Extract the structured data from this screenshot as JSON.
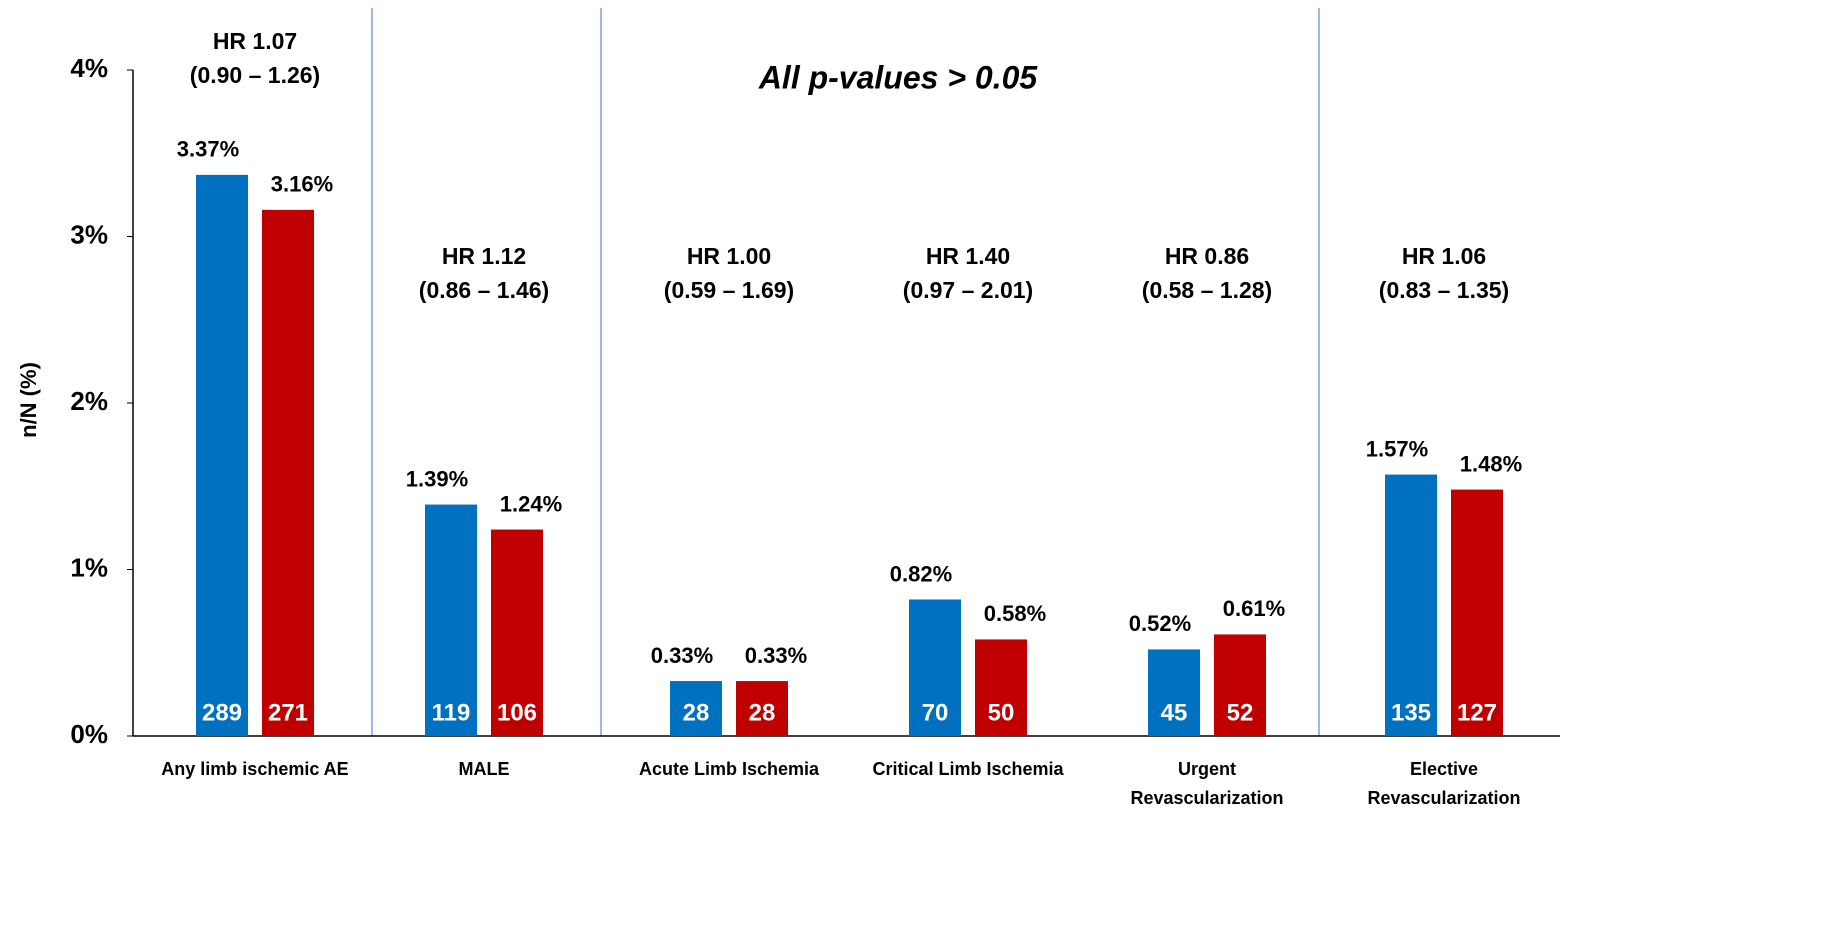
{
  "chart_data": {
    "type": "bar",
    "annotation": "All p-values > 0.05",
    "y_label": "n/N (%)",
    "categories": [
      [
        "Any limb ischemic AE"
      ],
      [
        "MALE"
      ],
      [
        "Acute Limb Ischemia"
      ],
      [
        "Critical Limb Ischemia"
      ],
      [
        "Urgent",
        "Revascularization"
      ],
      [
        "Elective",
        "Revascularization"
      ]
    ],
    "hazard_ratios": [
      [
        "HR 1.07",
        "(0.90 – 1.26)"
      ],
      [
        "HR 1.12",
        "(0.86 – 1.46)"
      ],
      [
        "HR 1.00",
        "(0.59 – 1.69)"
      ],
      [
        "HR 1.40",
        "(0.97 – 2.01)"
      ],
      [
        "HR 0.86",
        "(0.58 – 1.28)"
      ],
      [
        "HR 1.06",
        "(0.83 – 1.35)"
      ]
    ],
    "series": [
      {
        "color": "#0070c0",
        "values": [
          3.37,
          1.39,
          0.33,
          0.82,
          0.52,
          1.57
        ],
        "value_labels": [
          "3.37%",
          "1.39%",
          "0.33%",
          "0.82%",
          "0.52%",
          "1.57%"
        ],
        "counts": [
          289,
          119,
          28,
          70,
          45,
          135
        ]
      },
      {
        "color": "#c00000",
        "values": [
          3.16,
          1.24,
          0.33,
          0.58,
          0.61,
          1.48
        ],
        "value_labels": [
          "3.16%",
          "1.24%",
          "0.33%",
          "0.58%",
          "0.61%",
          "1.48%"
        ],
        "counts": [
          271,
          106,
          28,
          50,
          52,
          127
        ]
      }
    ],
    "ylim": [
      0,
      4
    ],
    "yticks": [
      {
        "value": 0,
        "label": "0%"
      },
      {
        "value": 1,
        "label": "1%"
      },
      {
        "value": 2,
        "label": "2%"
      },
      {
        "value": 3,
        "label": "3%"
      },
      {
        "value": 4,
        "label": "4%"
      }
    ]
  }
}
